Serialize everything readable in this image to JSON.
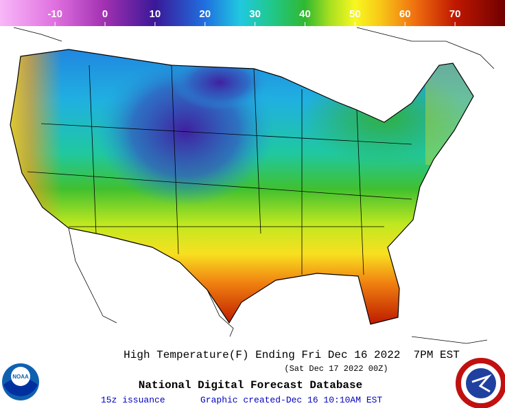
{
  "colorbar": {
    "range": [
      -21,
      80
    ],
    "ticks": [
      -10,
      0,
      10,
      20,
      30,
      40,
      50,
      60,
      70
    ],
    "stops": [
      {
        "value": -21,
        "color": "#f8b8f8"
      },
      {
        "value": -10,
        "color": "#e070e0"
      },
      {
        "value": 0,
        "color": "#a030b0"
      },
      {
        "value": 10,
        "color": "#3a1898"
      },
      {
        "value": 20,
        "color": "#2070e0"
      },
      {
        "value": 27,
        "color": "#20c8e0"
      },
      {
        "value": 33,
        "color": "#20c890"
      },
      {
        "value": 40,
        "color": "#30b830"
      },
      {
        "value": 45,
        "color": "#a8e020"
      },
      {
        "value": 50,
        "color": "#f8f820"
      },
      {
        "value": 55,
        "color": "#f8c818"
      },
      {
        "value": 62,
        "color": "#f07010"
      },
      {
        "value": 70,
        "color": "#c01800"
      },
      {
        "value": 80,
        "color": "#700000"
      }
    ]
  },
  "caption": {
    "title": "High Temperature(F) Ending Fri Dec 16 2022  7PM EST",
    "subtitle": "(Sat Dec 17 2022 00Z)"
  },
  "footer": {
    "database": "National Digital Forecast Database",
    "issuance": "15z issuance",
    "created": "Graphic created-Dec 16 10:10AM EST",
    "noaa": "NOAA"
  }
}
